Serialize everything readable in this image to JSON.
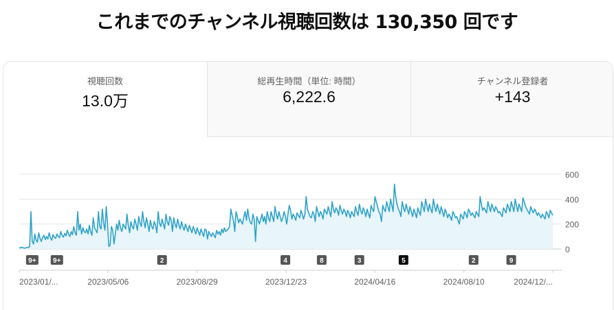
{
  "headline": "これまでのチャンネル視聴回数は 130,350 回です",
  "metrics": [
    {
      "label": "視聴回数",
      "value": "13.0万",
      "selected": true
    },
    {
      "label": "総再生時間（単位: 時間）",
      "value": "6,222.6",
      "selected": false
    },
    {
      "label": "チャンネル登録者",
      "value": "+143",
      "selected": false
    }
  ],
  "colors": {
    "line": "#2ea2c8",
    "fill": "#e8f5fa",
    "marker": "#555555",
    "marker_active": "#0f0f0f",
    "grid": "#e5e5e5"
  },
  "chart_data": {
    "type": "line",
    "series": [
      {
        "values": [
          12,
          8,
          15,
          10,
          6,
          9,
          14,
          11,
          20,
          300,
          60,
          40,
          120,
          70,
          55,
          130,
          85,
          60,
          95,
          110,
          75,
          100,
          80,
          130,
          90,
          70,
          115,
          95,
          85,
          120,
          100,
          90,
          140,
          110,
          95,
          125,
          105,
          150,
          120,
          100,
          140,
          115,
          180,
          130,
          110,
          300,
          150,
          200,
          120,
          170,
          140,
          130,
          160,
          120,
          190,
          140,
          110,
          250,
          170,
          150,
          130,
          300,
          180,
          160,
          320,
          210,
          150,
          340,
          200,
          20,
          30,
          180,
          150,
          40,
          120,
          200,
          150,
          230,
          170,
          140,
          200,
          180,
          160,
          280,
          190,
          130,
          220,
          180,
          160,
          240,
          200,
          150,
          260,
          210,
          180,
          300,
          220,
          170,
          250,
          200,
          140,
          230,
          180,
          160,
          220,
          190,
          130,
          300,
          210,
          180,
          240,
          200,
          160,
          280,
          220,
          190,
          260,
          230,
          140,
          250,
          200,
          170,
          240,
          190,
          160,
          220,
          180,
          150,
          200,
          170,
          140,
          190,
          160,
          130,
          180,
          150,
          120,
          170,
          140,
          110,
          160,
          130,
          100,
          160,
          150,
          80,
          140,
          120,
          100,
          130,
          110,
          90,
          150,
          120,
          140,
          110,
          160,
          130,
          170,
          140,
          150,
          160,
          180,
          320,
          270,
          230,
          140,
          300,
          260,
          210,
          240,
          220,
          200,
          260,
          300,
          230,
          320,
          250,
          210,
          200,
          280,
          240,
          60,
          260,
          230,
          200,
          240,
          280,
          220,
          260,
          200,
          300,
          250,
          220,
          300,
          260,
          220,
          340,
          280,
          240,
          300,
          260,
          220,
          250,
          300,
          260,
          200,
          280,
          350,
          310,
          240,
          280,
          260,
          230,
          290,
          270,
          250,
          310,
          280,
          240,
          280,
          420,
          320,
          290,
          260,
          250,
          300,
          280,
          220,
          340,
          300,
          260,
          300,
          280,
          240,
          320,
          300,
          280,
          340,
          300,
          260,
          380,
          320,
          290,
          330,
          310,
          270,
          350,
          310,
          280,
          320,
          300,
          260,
          310,
          290,
          250,
          300,
          280,
          260,
          340,
          300,
          270,
          360,
          310,
          280,
          330,
          300,
          260,
          320,
          280,
          250,
          350,
          320,
          300,
          420,
          380,
          340,
          300,
          280,
          220,
          350,
          320,
          300,
          380,
          340,
          300,
          400,
          350,
          300,
          520,
          420,
          360,
          320,
          300,
          260,
          380,
          330,
          300,
          360,
          320,
          280,
          340,
          300,
          260,
          320,
          290,
          250,
          330,
          300,
          270,
          380,
          340,
          300,
          400,
          350,
          300,
          360,
          320,
          290,
          400,
          340,
          300,
          360,
          320,
          280,
          340,
          300,
          260,
          320,
          290,
          250,
          280,
          260,
          230,
          300,
          280,
          250,
          260,
          230,
          200,
          280,
          260,
          240,
          300,
          280,
          250,
          320,
          300,
          270,
          290,
          270,
          250,
          300,
          280,
          260,
          420,
          360,
          310,
          330,
          310,
          290,
          380,
          340,
          300,
          360,
          330,
          300,
          340,
          320,
          290,
          300,
          280,
          260,
          330,
          310,
          290,
          360,
          330,
          300,
          380,
          340,
          300,
          400,
          350,
          300,
          360,
          330,
          300,
          410,
          380,
          340,
          320,
          300,
          280,
          340,
          310,
          290,
          320,
          300,
          270,
          290,
          270,
          250,
          280,
          260,
          240,
          300,
          280,
          250,
          310,
          290,
          270
        ]
      }
    ],
    "x_tick_labels": [
      "2023/01/...",
      "2023/05/06",
      "2023/08/29",
      "2023/12/23",
      "2024/04/16",
      "2024/08/10",
      "2024/12/..."
    ],
    "y_ticks": [
      0,
      200,
      400,
      600
    ],
    "ylim": [
      0,
      650
    ],
    "grid": true,
    "event_markers": [
      {
        "label": "9+",
        "index": 10,
        "active": false
      },
      {
        "label": "9+",
        "index": 29,
        "active": false
      },
      {
        "label": "2",
        "index": 110,
        "active": false
      },
      {
        "label": "4",
        "index": 205,
        "active": false
      },
      {
        "label": "8",
        "index": 233,
        "active": false
      },
      {
        "label": "3",
        "index": 262,
        "active": false
      },
      {
        "label": "5",
        "index": 296,
        "active": true
      },
      {
        "label": "2",
        "index": 350,
        "active": false
      },
      {
        "label": "9",
        "index": 379,
        "active": false
      }
    ]
  }
}
